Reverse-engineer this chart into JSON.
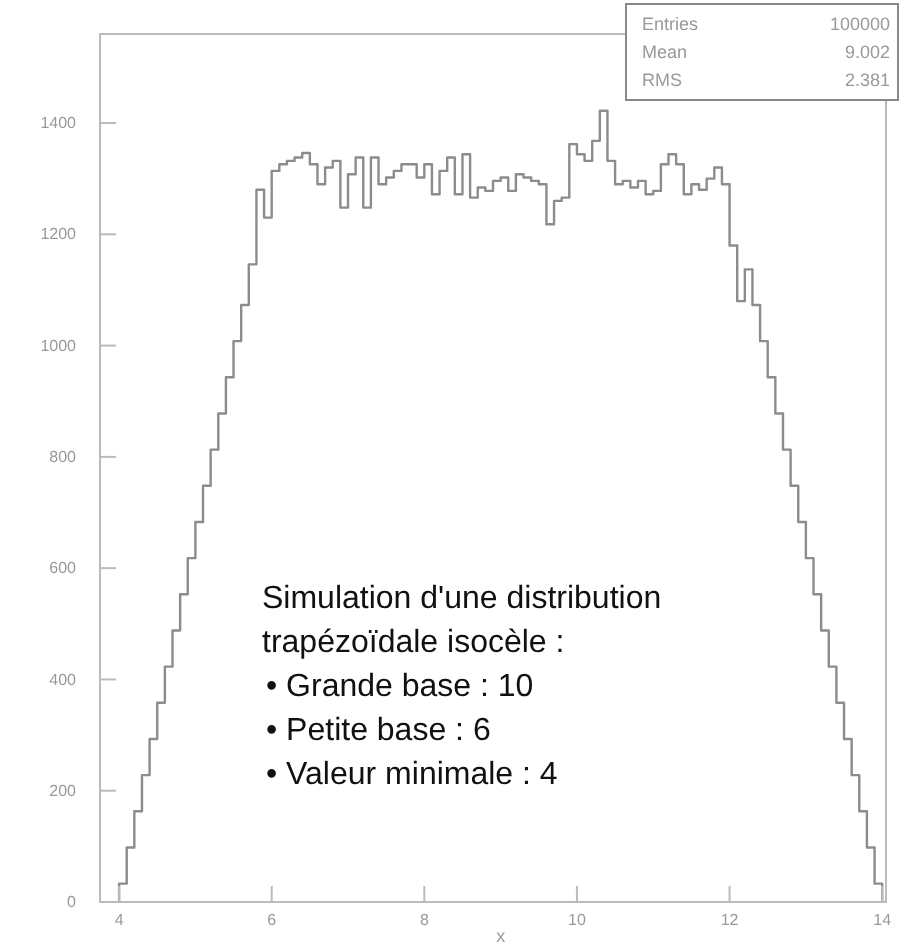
{
  "chart_data": {
    "type": "histogram",
    "xlabel": "x",
    "bins": [
      4,
      4.1,
      4.2,
      4.3,
      4.4,
      4.5,
      4.6,
      4.7,
      4.8,
      4.9,
      5,
      5.1,
      5.2,
      5.3,
      5.4,
      5.5,
      5.6,
      5.7,
      5.8,
      5.9,
      6,
      6.1,
      6.2,
      6.3,
      6.4,
      6.5,
      6.6,
      6.7,
      6.8,
      6.9,
      7,
      7.1,
      7.2,
      7.3,
      7.4,
      7.5,
      7.6,
      7.7,
      7.8,
      7.9,
      8,
      8.1,
      8.2,
      8.3,
      8.4,
      8.5,
      8.6,
      8.7,
      8.8,
      8.9,
      9,
      9.1,
      9.2,
      9.3,
      9.4,
      9.5,
      9.6,
      9.7,
      9.8,
      9.9,
      10,
      10.1,
      10.2,
      10.3,
      10.4,
      10.5,
      10.6,
      10.7,
      10.8,
      10.9,
      11,
      11.1,
      11.2,
      11.3,
      11.4,
      11.5,
      11.6,
      11.7,
      11.8,
      11.9,
      12,
      12.1,
      12.2,
      12.3,
      12.4,
      12.5,
      12.6,
      12.7,
      12.8,
      12.9,
      13,
      13.1,
      13.2,
      13.3,
      13.4,
      13.5,
      13.6,
      13.7,
      13.8,
      13.9,
      14
    ],
    "values": [
      33,
      98,
      163,
      228,
      293,
      358,
      423,
      488,
      553,
      618,
      683,
      748,
      813,
      878,
      943,
      1008,
      1073,
      1146,
      1280,
      1230,
      1314,
      1326,
      1332,
      1338,
      1346,
      1326,
      1290,
      1320,
      1332,
      1248,
      1308,
      1338,
      1248,
      1338,
      1290,
      1302,
      1314,
      1326,
      1326,
      1302,
      1326,
      1272,
      1314,
      1338,
      1272,
      1344,
      1266,
      1284,
      1278,
      1296,
      1302,
      1278,
      1308,
      1302,
      1296,
      1290,
      1218,
      1260,
      1266,
      1362,
      1344,
      1332,
      1368,
      1422,
      1332,
      1290,
      1296,
      1284,
      1296,
      1272,
      1278,
      1326,
      1344,
      1326,
      1272,
      1290,
      1280,
      1300,
      1320,
      1290,
      1180,
      1080,
      1137,
      1073,
      1008,
      943,
      878,
      813,
      748,
      683,
      618,
      553,
      488,
      423,
      358,
      293,
      228,
      163,
      98,
      33
    ],
    "color": "#8c8c8c",
    "xlim": [
      3.75,
      14.05
    ],
    "ylim": [
      0,
      1560
    ],
    "xticks": [
      4,
      6,
      8,
      10,
      12,
      14
    ],
    "yticks": [
      0,
      200,
      400,
      600,
      800,
      1000,
      1200,
      1400
    ],
    "grid": false,
    "annotations": [
      "Entries 100000",
      "Mean 9.002",
      "RMS 2.381",
      "Simulation d'une distribution",
      "trapézoïdale isocèle :",
      "• Grande base : 10",
      "• Petite base : 6",
      "• Valeur minimale : 4"
    ]
  }
}
